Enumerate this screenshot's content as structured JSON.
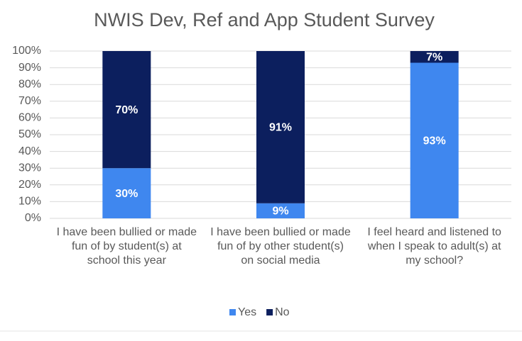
{
  "chart_data": {
    "type": "stacked_bar",
    "title": "NWIS Dev, Ref and App Student Survey",
    "categories": [
      "I have been bullied or made fun of by student(s) at school this year",
      "I have been bullied or made fun of by other student(s) on social media",
      "I feel heard and listened to when I speak to adult(s) at my school?"
    ],
    "series": [
      {
        "name": "Yes",
        "color": "#3f87ef",
        "values": [
          30,
          9,
          93
        ],
        "value_labels": [
          "30%",
          "9%",
          "93%"
        ]
      },
      {
        "name": "No",
        "color": "#0c1f5e",
        "values": [
          70,
          91,
          7
        ],
        "value_labels": [
          "70%",
          "91%",
          "7%"
        ]
      }
    ],
    "ylim": [
      0,
      100
    ],
    "yticks": [
      {
        "value": 0,
        "label": "0%"
      },
      {
        "value": 10,
        "label": "10%"
      },
      {
        "value": 20,
        "label": "20%"
      },
      {
        "value": 30,
        "label": "30%"
      },
      {
        "value": 40,
        "label": "40%"
      },
      {
        "value": 50,
        "label": "50%"
      },
      {
        "value": 60,
        "label": "60%"
      },
      {
        "value": 70,
        "label": "70%"
      },
      {
        "value": 80,
        "label": "80%"
      },
      {
        "value": 90,
        "label": "90%"
      },
      {
        "value": 100,
        "label": "100%"
      }
    ],
    "grid": true,
    "legend": "bottom"
  }
}
